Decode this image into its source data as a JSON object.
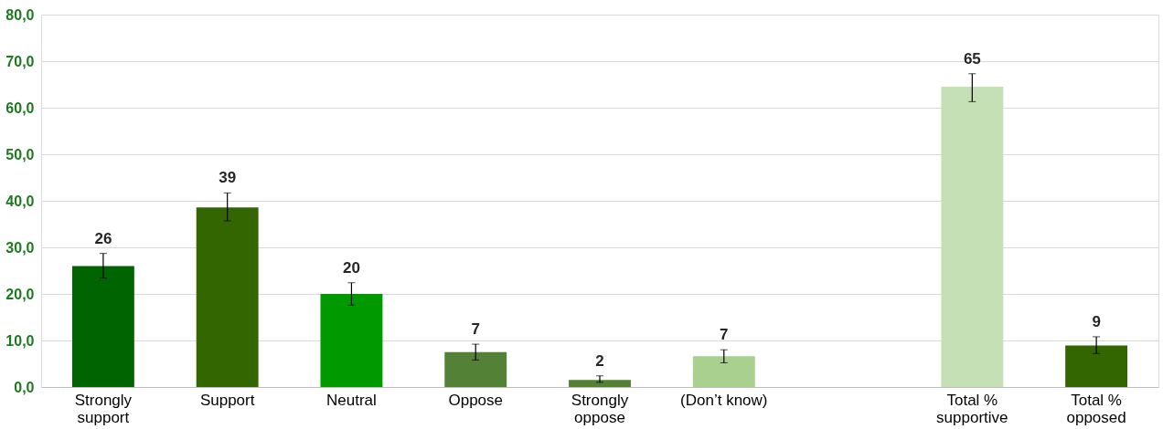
{
  "chart_data": {
    "type": "bar",
    "categories": [
      "Strongly\nsupport",
      "Support",
      "Neutral",
      "Oppose",
      "Strongly\noppose",
      "(Don’t know)",
      null,
      "Total %\nsupportive",
      "Total %\nopposed"
    ],
    "values": [
      26.0,
      38.6,
      20.0,
      7.5,
      1.5,
      6.6,
      null,
      64.5,
      8.9
    ],
    "colors": [
      "#006400",
      "#336600",
      "#009900",
      "#538135",
      "#548235",
      "#a9d08e",
      "#ffffff",
      "#c5e0b4",
      "#336600"
    ],
    "errors": [
      [
        23.4,
        28.7
      ],
      [
        35.7,
        41.7
      ],
      [
        17.6,
        22.4
      ],
      [
        5.8,
        9.2
      ],
      [
        1.0,
        2.4
      ],
      [
        5.2,
        8.0
      ],
      null,
      [
        61.3,
        67.3
      ],
      [
        7.2,
        10.8
      ]
    ],
    "value_labels": [
      "26",
      "39",
      "20",
      "7",
      "2",
      "7",
      null,
      "65",
      "9"
    ],
    "ylim": [
      0,
      80
    ],
    "yticks": [
      {
        "value": 0,
        "label": "0,0"
      },
      {
        "value": 10,
        "label": "10,0"
      },
      {
        "value": 20,
        "label": "20,0"
      },
      {
        "value": 30,
        "label": "30,0"
      },
      {
        "value": 40,
        "label": "40,0"
      },
      {
        "value": 50,
        "label": "50,0"
      },
      {
        "value": 60,
        "label": "60,0"
      },
      {
        "value": 70,
        "label": "70,0"
      },
      {
        "value": 80,
        "label": "80,0"
      }
    ],
    "grid": "y"
  }
}
